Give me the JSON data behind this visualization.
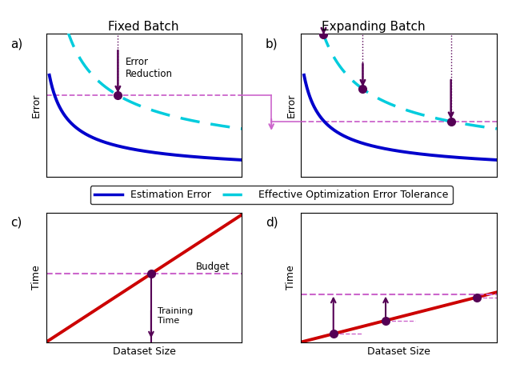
{
  "title_left": "Fixed Batch",
  "title_right": "Expanding Batch",
  "label_a": "a)",
  "label_b": "b)",
  "label_c": "c)",
  "label_d": "d)",
  "estimation_error_color": "#0000CC",
  "opt_error_color": "#00CCDD",
  "arrow_color": "#550055",
  "hline_color": "#CC66CC",
  "budget_color": "#CC66CC",
  "training_line_color": "#CC0000",
  "dot_color": "#550055",
  "annotation_color": "#000000",
  "legend_est_label": "Estimation Error",
  "legend_opt_label": "Effective Optimization Error Tolerance",
  "ylabel_error": "Error",
  "ylabel_time": "Time",
  "xlabel_dataset": "Dataset Size",
  "budget_label": "Budget",
  "training_time_label": "Training\nTime",
  "error_reduction_label": "Error\nReduction",
  "connect_arrow_color": "#CC66CC"
}
